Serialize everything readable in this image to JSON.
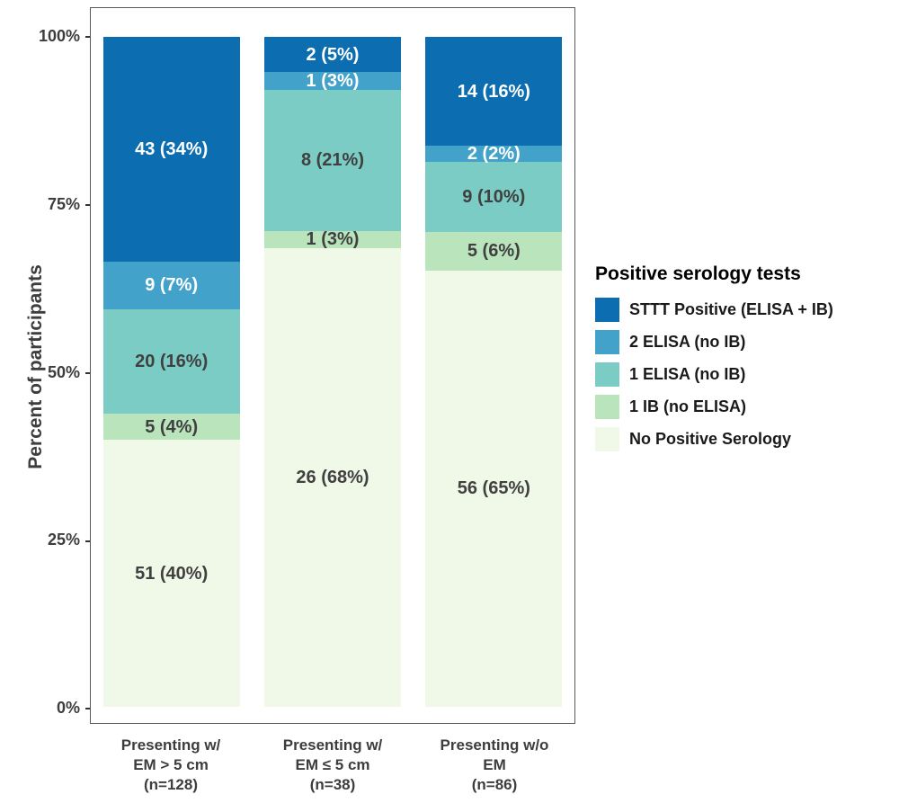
{
  "chart_data": {
    "type": "bar",
    "stacked": true,
    "percent_scale": true,
    "title": "",
    "xlabel": "",
    "ylabel": "Percent of participants",
    "ylim": [
      0,
      100
    ],
    "grid": false,
    "legend_position": "right",
    "legend_title": "Positive serology tests",
    "yticks": [
      {
        "label": "0%",
        "value": 0
      },
      {
        "label": "25%",
        "value": 25
      },
      {
        "label": "50%",
        "value": 50
      },
      {
        "label": "75%",
        "value": 75
      },
      {
        "label": "100%",
        "value": 100
      }
    ],
    "categories": [
      {
        "label_lines": [
          "Presenting w/",
          "EM > 5 cm",
          "(n=128)"
        ],
        "n": 128
      },
      {
        "label_lines": [
          "Presenting w/",
          "EM ≤ 5 cm",
          "(n=38)"
        ],
        "n": 38
      },
      {
        "label_lines": [
          "Presenting w/o",
          "EM",
          "(n=86)"
        ],
        "n": 86
      }
    ],
    "series": [
      {
        "name": "STTT Positive (ELISA + IB)",
        "color": "#0c6eb0",
        "text_color": "#ffffff",
        "counts": [
          43,
          2,
          14
        ],
        "labels": [
          "43 (34%)",
          "2 (5%)",
          "14 (16%)"
        ]
      },
      {
        "name": "2 ELISA (no IB)",
        "color": "#43a2ca",
        "text_color": "#ffffff",
        "counts": [
          9,
          1,
          2
        ],
        "labels": [
          "9 (7%)",
          "1 (3%)",
          "2 (2%)"
        ]
      },
      {
        "name": "1 ELISA (no IB)",
        "color": "#7bccc4",
        "text_color": "#404040",
        "counts": [
          20,
          8,
          9
        ],
        "labels": [
          "20 (16%)",
          "8 (21%)",
          "9 (10%)"
        ]
      },
      {
        "name": "1 IB (no ELISA)",
        "color": "#bae4bc",
        "text_color": "#404040",
        "counts": [
          5,
          1,
          5
        ],
        "labels": [
          "5 (4%)",
          "1 (3%)",
          "5 (6%)"
        ]
      },
      {
        "name": "No Positive Serology",
        "color": "#f0f9e8",
        "text_color": "#404040",
        "counts": [
          51,
          26,
          56
        ],
        "labels": [
          "51 (40%)",
          "26 (68%)",
          "56 (65%)"
        ]
      }
    ]
  }
}
